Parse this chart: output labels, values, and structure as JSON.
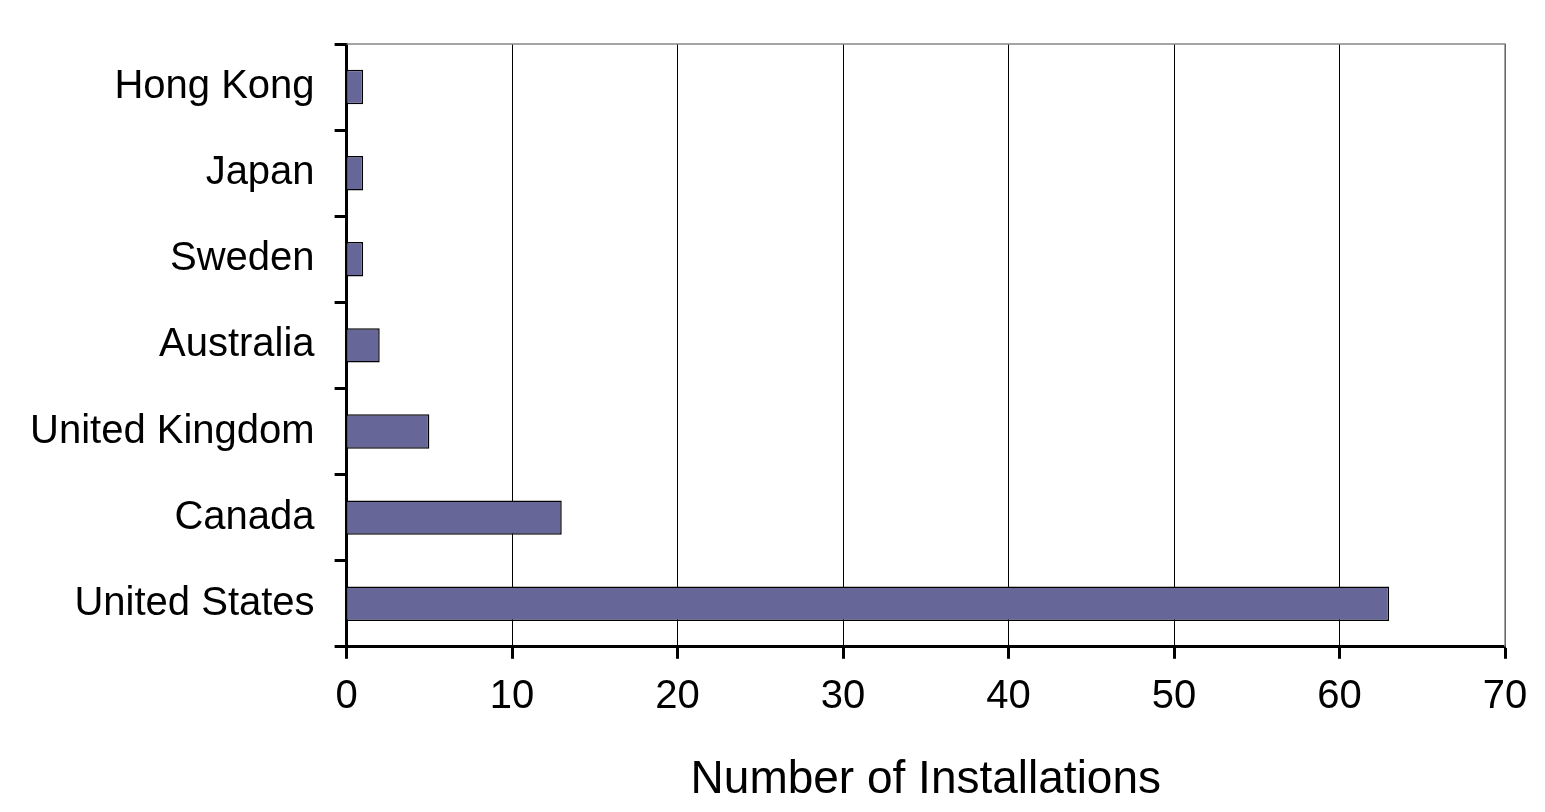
{
  "chart_data": {
    "type": "bar",
    "orientation": "horizontal",
    "xlabel": "Number of Installations",
    "categories": [
      "Hong Kong",
      "Japan",
      "Sweden",
      "Australia",
      "United Kingdom",
      "Canada",
      "United States"
    ],
    "values": [
      1,
      1,
      1,
      2,
      5,
      13,
      63
    ],
    "color": "#666699",
    "xlim": [
      0,
      70
    ],
    "xticks": [
      0,
      10,
      20,
      30,
      40,
      50,
      60,
      70
    ],
    "grid": "x"
  }
}
